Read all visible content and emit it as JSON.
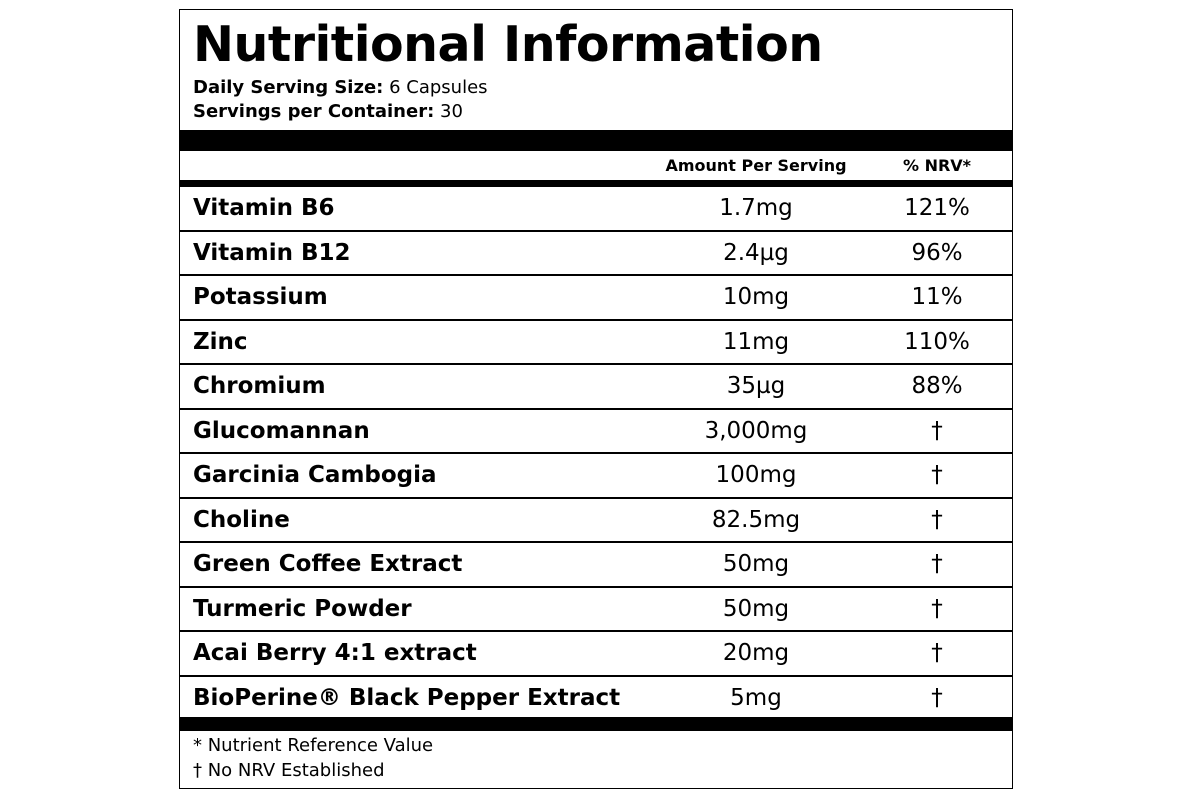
{
  "label": {
    "title": "Nutritional Information",
    "serving_size_label": "Daily Serving Size:",
    "serving_size_value": "6 Capsules",
    "servings_label": "Servings per Container:",
    "servings_value": "30",
    "columns": {
      "amount": "Amount Per Serving",
      "nrv": "% NRV*"
    },
    "rows": [
      {
        "name": "Vitamin B6",
        "amount": "1.7mg",
        "nrv": "121%"
      },
      {
        "name": "Vitamin B12",
        "amount": "2.4µg",
        "nrv": "96%"
      },
      {
        "name": "Potassium",
        "amount": "10mg",
        "nrv": "11%"
      },
      {
        "name": "Zinc",
        "amount": "11mg",
        "nrv": "110%"
      },
      {
        "name": "Chromium",
        "amount": "35µg",
        "nrv": "88%"
      },
      {
        "name": "Glucomannan",
        "amount": "3,000mg",
        "nrv": "†"
      },
      {
        "name": "Garcinia Cambogia",
        "amount": "100mg",
        "nrv": "†"
      },
      {
        "name": "Choline",
        "amount": "82.5mg",
        "nrv": "†"
      },
      {
        "name": "Green Coffee Extract",
        "amount": "50mg",
        "nrv": "†"
      },
      {
        "name": "Turmeric Powder",
        "amount": "50mg",
        "nrv": "†"
      },
      {
        "name": "Acai Berry 4:1 extract",
        "amount": "20mg",
        "nrv": "†"
      },
      {
        "name": "BioPerine® Black Pepper Extract",
        "amount": "5mg",
        "nrv": "†"
      }
    ],
    "footnotes": {
      "nrv_note": "* Nutrient Reference Value",
      "dagger_note": "† No NRV Established"
    }
  }
}
